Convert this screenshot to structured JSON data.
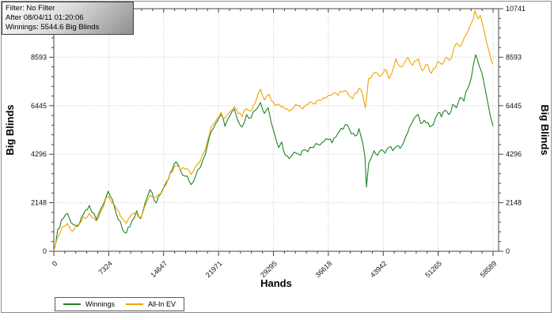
{
  "window": {
    "background": "#ffffff",
    "border_color": "#8c8c8c"
  },
  "info_box": {
    "line1": "Filter: No Filter",
    "line2": "After 08/04/11 01:20:06",
    "line3": "Winnings: 5544.6 Big Blinds"
  },
  "chart_data": {
    "type": "line",
    "title": "",
    "xlabel": "Hands",
    "ylabel_left": "Big Blinds",
    "ylabel_right": "Big Blinds",
    "xlim": [
      0,
      58589
    ],
    "ylim": [
      0,
      10741
    ],
    "x_ticks": [
      0,
      7324,
      14647,
      21971,
      29295,
      36618,
      43942,
      51265,
      58589
    ],
    "y_ticks": [
      0,
      2148,
      4296,
      6445,
      8593,
      10741
    ],
    "x_minor_step": 1464.8,
    "y_minor_step": 429.6,
    "grid": "dotted",
    "grid_color": "#c8c8c8",
    "axis_color": "#444444",
    "legend_position": "bottom-left",
    "series": [
      {
        "name": "Winnings",
        "color": "#1E8420",
        "points": [
          [
            0,
            0
          ],
          [
            530,
            980
          ],
          [
            1260,
            1440
          ],
          [
            1790,
            1680
          ],
          [
            2320,
            1260
          ],
          [
            3160,
            1090
          ],
          [
            3700,
            1500
          ],
          [
            4730,
            2030
          ],
          [
            5680,
            1400
          ],
          [
            6300,
            1900
          ],
          [
            7260,
            2660
          ],
          [
            7800,
            2300
          ],
          [
            8310,
            1680
          ],
          [
            9150,
            980
          ],
          [
            9680,
            810
          ],
          [
            10410,
            1330
          ],
          [
            11050,
            1790
          ],
          [
            11570,
            1440
          ],
          [
            12140,
            2100
          ],
          [
            12830,
            2730
          ],
          [
            13680,
            2140
          ],
          [
            14500,
            2700
          ],
          [
            15300,
            3200
          ],
          [
            16300,
            3960
          ],
          [
            16900,
            3550
          ],
          [
            17800,
            3330
          ],
          [
            18300,
            2950
          ],
          [
            18620,
            3080
          ],
          [
            19200,
            3600
          ],
          [
            19880,
            4030
          ],
          [
            20500,
            4700
          ],
          [
            21000,
            5300
          ],
          [
            21570,
            5640
          ],
          [
            22300,
            6060
          ],
          [
            22830,
            5530
          ],
          [
            23400,
            5950
          ],
          [
            24090,
            6300
          ],
          [
            24600,
            5750
          ],
          [
            25100,
            5500
          ],
          [
            25700,
            6050
          ],
          [
            26300,
            5900
          ],
          [
            26900,
            6250
          ],
          [
            27570,
            6590
          ],
          [
            28100,
            6100
          ],
          [
            28600,
            6350
          ],
          [
            29000,
            5700
          ],
          [
            29360,
            5290
          ],
          [
            29990,
            4590
          ],
          [
            30400,
            4840
          ],
          [
            30900,
            4250
          ],
          [
            31400,
            4100
          ],
          [
            31770,
            4240
          ],
          [
            32300,
            4350
          ],
          [
            32900,
            4250
          ],
          [
            33350,
            4490
          ],
          [
            33900,
            4400
          ],
          [
            34400,
            4600
          ],
          [
            34930,
            4770
          ],
          [
            35500,
            4700
          ],
          [
            36000,
            4850
          ],
          [
            36618,
            4940
          ],
          [
            37100,
            4800
          ],
          [
            37600,
            5050
          ],
          [
            38080,
            5290
          ],
          [
            38600,
            5400
          ],
          [
            39130,
            5600
          ],
          [
            39700,
            5200
          ],
          [
            40200,
            5100
          ],
          [
            40700,
            5430
          ],
          [
            41200,
            4800
          ],
          [
            41500,
            4200
          ],
          [
            41700,
            2840
          ],
          [
            42000,
            3900
          ],
          [
            42300,
            4100
          ],
          [
            42700,
            4450
          ],
          [
            43200,
            4250
          ],
          [
            43700,
            4500
          ],
          [
            44200,
            4350
          ],
          [
            44700,
            4600
          ],
          [
            45200,
            4450
          ],
          [
            45700,
            4650
          ],
          [
            46200,
            4550
          ],
          [
            46700,
            4850
          ],
          [
            47200,
            5250
          ],
          [
            47700,
            5650
          ],
          [
            48100,
            5900
          ],
          [
            48600,
            6060
          ],
          [
            48950,
            5650
          ],
          [
            49400,
            5800
          ],
          [
            49900,
            5700
          ],
          [
            50380,
            5550
          ],
          [
            50900,
            5900
          ],
          [
            51265,
            6130
          ],
          [
            51700,
            5950
          ],
          [
            52200,
            6250
          ],
          [
            52700,
            6050
          ],
          [
            53200,
            6500
          ],
          [
            53700,
            6350
          ],
          [
            54200,
            6800
          ],
          [
            54700,
            6650
          ],
          [
            55200,
            7200
          ],
          [
            55700,
            7700
          ],
          [
            56280,
            8700
          ],
          [
            56700,
            8250
          ],
          [
            57100,
            7900
          ],
          [
            57500,
            7250
          ],
          [
            57900,
            6550
          ],
          [
            58250,
            5950
          ],
          [
            58589,
            5544.6
          ]
        ]
      },
      {
        "name": "All-In EV",
        "color": "#F0A300",
        "points": [
          [
            0,
            0
          ],
          [
            530,
            630
          ],
          [
            1260,
            1100
          ],
          [
            1790,
            1230
          ],
          [
            2530,
            880
          ],
          [
            3680,
            1330
          ],
          [
            4730,
            1680
          ],
          [
            5680,
            1330
          ],
          [
            6300,
            1800
          ],
          [
            7260,
            2450
          ],
          [
            8000,
            2100
          ],
          [
            8630,
            1790
          ],
          [
            9680,
            1230
          ],
          [
            10730,
            1680
          ],
          [
            11570,
            1500
          ],
          [
            12140,
            2000
          ],
          [
            12830,
            2490
          ],
          [
            13680,
            2400
          ],
          [
            14500,
            2750
          ],
          [
            15300,
            3250
          ],
          [
            16300,
            3800
          ],
          [
            16900,
            3600
          ],
          [
            17800,
            3650
          ],
          [
            18300,
            3400
          ],
          [
            18620,
            3550
          ],
          [
            19200,
            3850
          ],
          [
            19880,
            4300
          ],
          [
            20500,
            4900
          ],
          [
            21000,
            5500
          ],
          [
            21570,
            5750
          ],
          [
            22300,
            6150
          ],
          [
            22830,
            5900
          ],
          [
            23400,
            6150
          ],
          [
            24090,
            6400
          ],
          [
            24600,
            6100
          ],
          [
            25100,
            5950
          ],
          [
            25700,
            6300
          ],
          [
            26300,
            6200
          ],
          [
            26900,
            6600
          ],
          [
            27570,
            7180
          ],
          [
            28100,
            6700
          ],
          [
            28700,
            6950
          ],
          [
            29295,
            6600
          ],
          [
            29800,
            6500
          ],
          [
            30300,
            6400
          ],
          [
            30900,
            6300
          ],
          [
            31400,
            6200
          ],
          [
            31770,
            6300
          ],
          [
            32500,
            6450
          ],
          [
            33200,
            6300
          ],
          [
            33900,
            6500
          ],
          [
            34600,
            6550
          ],
          [
            35300,
            6700
          ],
          [
            36000,
            6800
          ],
          [
            36618,
            6900
          ],
          [
            37300,
            7000
          ],
          [
            37900,
            6900
          ],
          [
            38500,
            7050
          ],
          [
            39130,
            7040
          ],
          [
            39870,
            6760
          ],
          [
            40710,
            7220
          ],
          [
            41200,
            6900
          ],
          [
            41550,
            6350
          ],
          [
            41970,
            7640
          ],
          [
            42810,
            7920
          ],
          [
            43400,
            7750
          ],
          [
            43942,
            7900
          ],
          [
            44390,
            7990
          ],
          [
            44700,
            7640
          ],
          [
            45100,
            7900
          ],
          [
            45650,
            8520
          ],
          [
            46100,
            8200
          ],
          [
            46490,
            8170
          ],
          [
            46850,
            8400
          ],
          [
            47230,
            8590
          ],
          [
            47860,
            8240
          ],
          [
            48600,
            8520
          ],
          [
            49120,
            7990
          ],
          [
            49650,
            8270
          ],
          [
            50380,
            7880
          ],
          [
            51220,
            8410
          ],
          [
            51760,
            8270
          ],
          [
            52300,
            8600
          ],
          [
            52800,
            8450
          ],
          [
            53300,
            8900
          ],
          [
            53800,
            9200
          ],
          [
            54300,
            9100
          ],
          [
            54800,
            9500
          ],
          [
            55300,
            9800
          ],
          [
            55700,
            10100
          ],
          [
            56170,
            10650
          ],
          [
            56600,
            10300
          ],
          [
            56900,
            10450
          ],
          [
            57200,
            10050
          ],
          [
            57500,
            9600
          ],
          [
            57800,
            9150
          ],
          [
            58100,
            8800
          ],
          [
            58350,
            8450
          ],
          [
            58589,
            8270
          ]
        ]
      }
    ]
  }
}
